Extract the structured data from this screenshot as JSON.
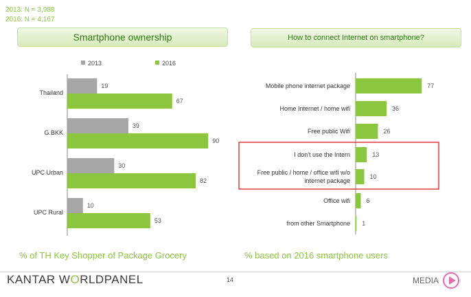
{
  "sample": {
    "line1": "2013: N = 3,988",
    "line2": "2016: N = 4,167"
  },
  "left": {
    "title": "Smartphone ownership",
    "note": "% of TH Key Shopper of Package Grocery"
  },
  "right": {
    "title": "How to connect Internet on smartphone?",
    "note": "% based on 2016 smartphone users"
  },
  "footer": {
    "brand_a": "KANTAR W",
    "brand_b": "O",
    "brand_c": "RLDPANEL",
    "page": "14",
    "media": "MEDIA"
  },
  "colors": {
    "y2013": "#a6a6a6",
    "y2016": "#8cc63f",
    "highlight": "#e03c3c"
  },
  "chart_data": [
    {
      "type": "bar",
      "orientation": "horizontal",
      "title": "Smartphone ownership",
      "categories": [
        "Thailand",
        "G.BKK",
        "UPC Urban",
        "UPC Rural"
      ],
      "series": [
        {
          "name": "2013",
          "values": [
            19,
            39,
            30,
            10
          ]
        },
        {
          "name": "2016",
          "values": [
            67,
            90,
            82,
            53
          ]
        }
      ],
      "xlim": [
        0,
        100
      ],
      "legend": "top",
      "grid": false
    },
    {
      "type": "bar",
      "orientation": "horizontal",
      "title": "How to connect Internet on smartphone?",
      "categories": [
        [
          "Mobile phone internet package"
        ],
        [
          "Home Internet / home wifi"
        ],
        [
          "Free public Wifi"
        ],
        [
          "I don't use the Intern"
        ],
        [
          "Free public / home / office wifi w/o",
          "internet package"
        ],
        [
          "Office wifi"
        ],
        [
          "from other Smartphone"
        ]
      ],
      "series": [
        {
          "name": "2016",
          "values": [
            77,
            36,
            26,
            13,
            10,
            6,
            1
          ]
        }
      ],
      "xlim": [
        0,
        100
      ],
      "highlighted": [
        3,
        4
      ],
      "grid": false
    }
  ]
}
